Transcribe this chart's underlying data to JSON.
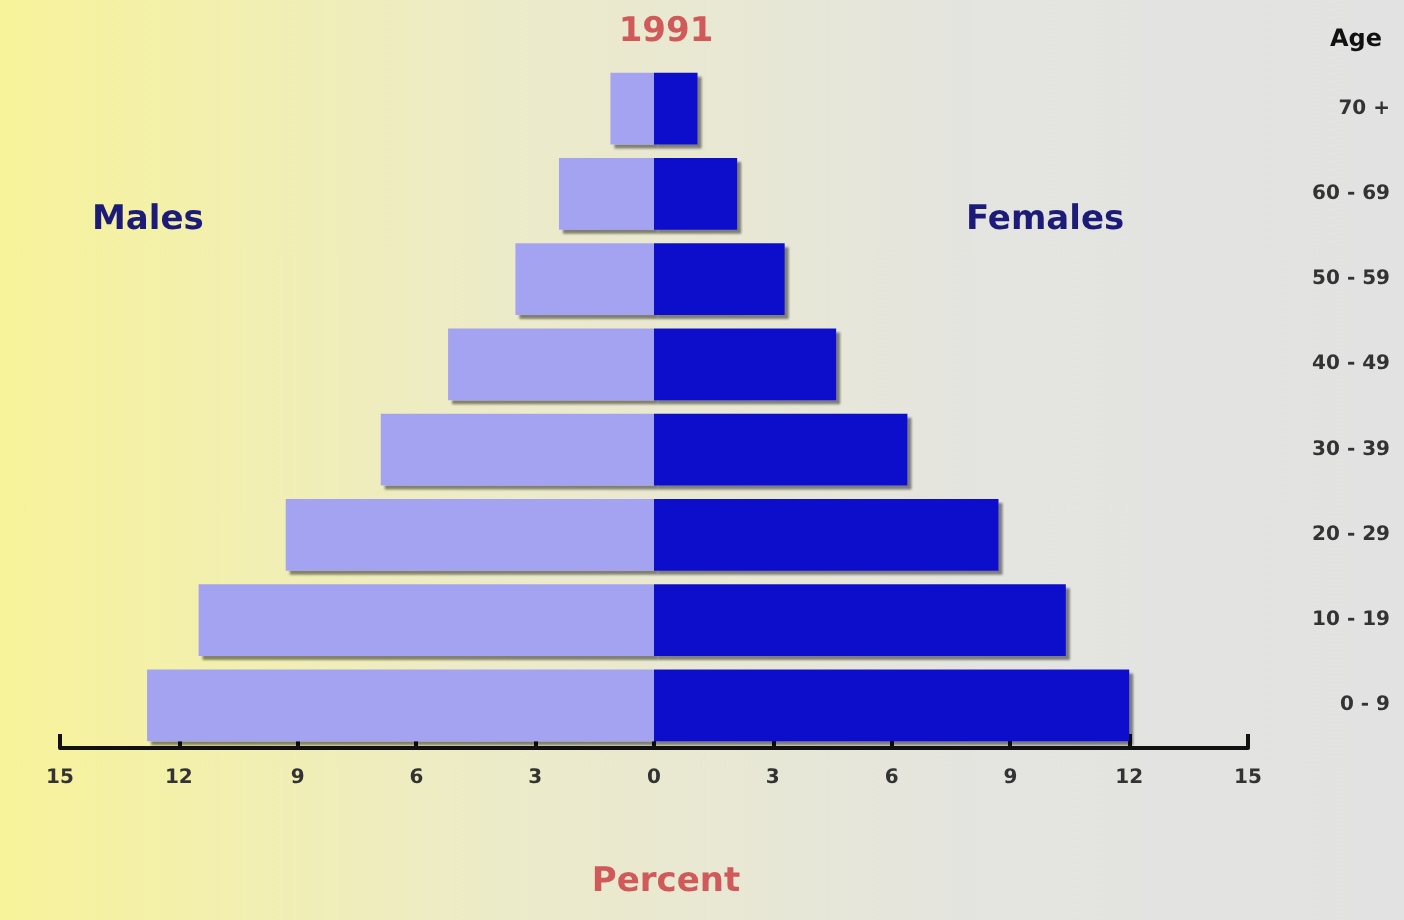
{
  "chart_data": {
    "type": "bar",
    "orientation": "horizontal",
    "title": "1991",
    "xlabel": "Percent",
    "ylabel": "Age",
    "stacked": true,
    "annotations": [
      "Males",
      "Females"
    ],
    "categories": [
      "70 +",
      "60 - 69",
      "50 - 59",
      "40 - 49",
      "30 - 39",
      "20 - 29",
      "10 - 19",
      "0 - 9"
    ],
    "series": [
      {
        "color": "#a3a3f2",
        "values": [
          -1.1,
          -2.4,
          -3.5,
          -5.2,
          -6.9,
          -9.3,
          -11.5,
          -12.8
        ]
      },
      {
        "color": "#1010cc",
        "values": [
          1.1,
          2.1,
          3.3,
          4.6,
          6.4,
          8.7,
          10.4,
          12.0
        ]
      }
    ],
    "xlim": [
      -15,
      15
    ],
    "xticks": [
      {
        "value": -15,
        "label": "15"
      },
      {
        "value": -12,
        "label": "12"
      },
      {
        "value": -9,
        "label": "9"
      },
      {
        "value": -6,
        "label": "6"
      },
      {
        "value": -3,
        "label": "3"
      },
      0,
      3,
      6,
      9,
      12,
      15
    ]
  }
}
